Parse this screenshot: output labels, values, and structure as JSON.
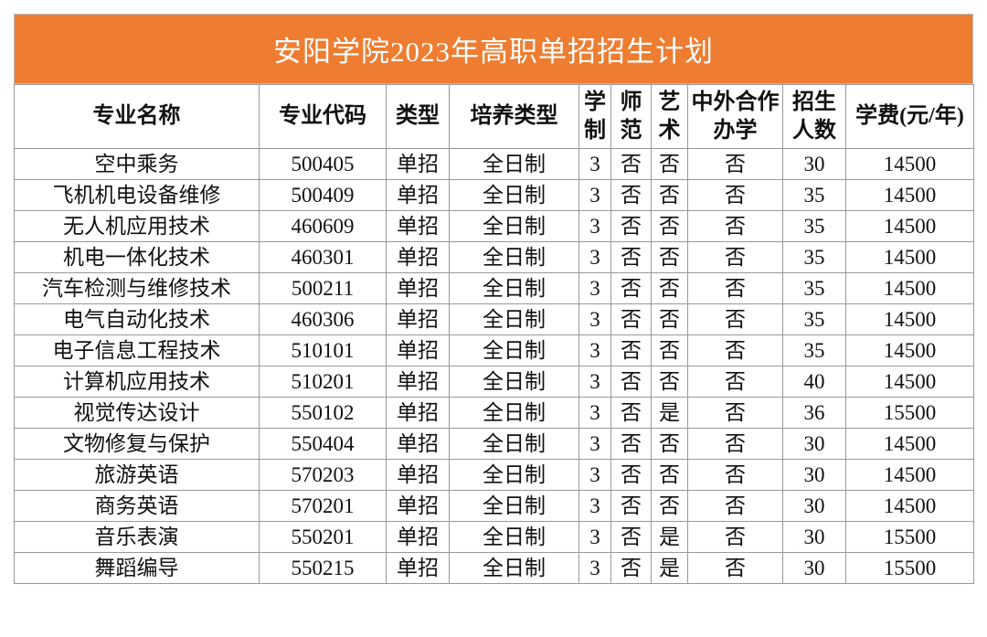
{
  "title": "安阳学院2023年高职单招招生计划",
  "table": {
    "header": [
      "专业名称",
      "专业代码",
      "类型",
      "培养类型",
      "学制",
      "师范",
      "艺术",
      "中外合作办学",
      "招生人数",
      "学费(元/年)"
    ],
    "rows": [
      [
        "空中乘务",
        "500405",
        "单招",
        "全日制",
        "3",
        "否",
        "否",
        "否",
        "30",
        "14500"
      ],
      [
        "飞机机电设备维修",
        "500409",
        "单招",
        "全日制",
        "3",
        "否",
        "否",
        "否",
        "35",
        "14500"
      ],
      [
        "无人机应用技术",
        "460609",
        "单招",
        "全日制",
        "3",
        "否",
        "否",
        "否",
        "35",
        "14500"
      ],
      [
        "机电一体化技术",
        "460301",
        "单招",
        "全日制",
        "3",
        "否",
        "否",
        "否",
        "35",
        "14500"
      ],
      [
        "汽车检测与维修技术",
        "500211",
        "单招",
        "全日制",
        "3",
        "否",
        "否",
        "否",
        "35",
        "14500"
      ],
      [
        "电气自动化技术",
        "460306",
        "单招",
        "全日制",
        "3",
        "否",
        "否",
        "否",
        "35",
        "14500"
      ],
      [
        "电子信息工程技术",
        "510101",
        "单招",
        "全日制",
        "3",
        "否",
        "否",
        "否",
        "35",
        "14500"
      ],
      [
        "计算机应用技术",
        "510201",
        "单招",
        "全日制",
        "3",
        "否",
        "否",
        "否",
        "40",
        "14500"
      ],
      [
        "视觉传达设计",
        "550102",
        "单招",
        "全日制",
        "3",
        "否",
        "是",
        "否",
        "36",
        "15500"
      ],
      [
        "文物修复与保护",
        "550404",
        "单招",
        "全日制",
        "3",
        "否",
        "否",
        "否",
        "30",
        "14500"
      ],
      [
        "旅游英语",
        "570203",
        "单招",
        "全日制",
        "3",
        "否",
        "否",
        "否",
        "30",
        "14500"
      ],
      [
        "商务英语",
        "570201",
        "单招",
        "全日制",
        "3",
        "否",
        "否",
        "否",
        "30",
        "14500"
      ],
      [
        "音乐表演",
        "550201",
        "单招",
        "全日制",
        "3",
        "否",
        "是",
        "否",
        "30",
        "15500"
      ],
      [
        "舞蹈编导",
        "550215",
        "单招",
        "全日制",
        "3",
        "否",
        "是",
        "否",
        "30",
        "15500"
      ]
    ]
  }
}
